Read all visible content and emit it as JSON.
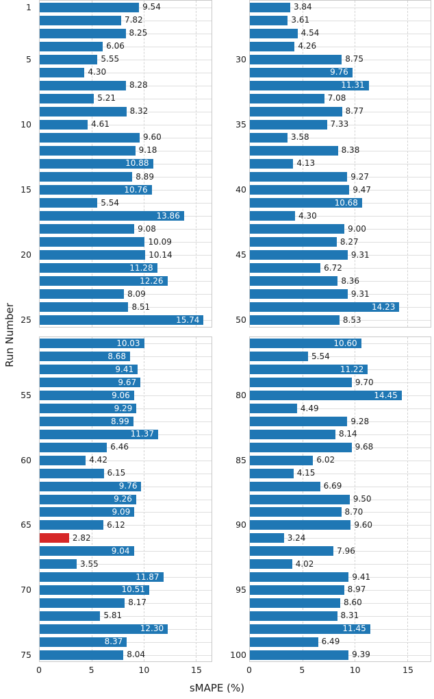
{
  "figure": {
    "xlabel": "sMAPE (%)",
    "ylabel": "Run Number",
    "colors": {
      "bar": "#1f77b4",
      "highlight": "#d62728",
      "label_inside": "#ffffff",
      "label_outside": "#1a1a1a",
      "grid_horizontal": "#dedede",
      "grid_vertical": "#d2d2d2",
      "panel_border": "#c9c9c9",
      "tick_text": "#1a1a1a"
    },
    "highlight_run": 66
  },
  "chart_data": {
    "type": "bar",
    "orientation": "horizontal",
    "title": "",
    "xlabel": "sMAPE (%)",
    "ylabel": "Run Number",
    "x_ticks": [
      0,
      5,
      10,
      15
    ],
    "x_tick_labels": [
      "0",
      "5",
      "10",
      "15"
    ],
    "grid": true,
    "value_labels_decimals": 2,
    "highlight_run": 66,
    "highlight_color": "#d62728",
    "bar_color": "#1f77b4",
    "panels": [
      {
        "name": "runs-1-25",
        "start_run": 1,
        "y_tick_runs": [
          1,
          5,
          10,
          15,
          20,
          25
        ],
        "values": [
          9.54,
          7.82,
          8.25,
          6.06,
          5.55,
          4.3,
          8.28,
          5.21,
          8.32,
          4.61,
          9.6,
          9.18,
          10.88,
          8.89,
          10.76,
          5.54,
          13.86,
          9.08,
          10.09,
          10.14,
          11.28,
          12.26,
          8.09,
          8.51,
          15.74
        ]
      },
      {
        "name": "runs-26-50",
        "start_run": 26,
        "y_tick_runs": [
          30,
          35,
          40,
          45,
          50
        ],
        "values": [
          3.84,
          3.61,
          4.54,
          4.26,
          8.75,
          9.76,
          11.31,
          7.08,
          8.77,
          7.33,
          3.58,
          8.38,
          4.13,
          9.27,
          9.47,
          10.68,
          4.3,
          9.0,
          8.27,
          9.31,
          6.72,
          8.36,
          9.31,
          14.23,
          8.53
        ]
      },
      {
        "name": "runs-51-75",
        "start_run": 51,
        "y_tick_runs": [
          55,
          60,
          65,
          70,
          75
        ],
        "values": [
          10.03,
          8.68,
          9.41,
          9.67,
          9.06,
          9.29,
          8.99,
          11.37,
          6.46,
          4.42,
          6.15,
          9.76,
          9.26,
          9.09,
          6.12,
          2.82,
          9.04,
          3.55,
          11.87,
          10.51,
          8.17,
          5.81,
          12.3,
          8.37,
          8.04
        ]
      },
      {
        "name": "runs-76-100",
        "start_run": 76,
        "y_tick_runs": [
          80,
          85,
          90,
          95,
          100
        ],
        "values": [
          10.6,
          5.54,
          11.22,
          9.7,
          14.45,
          4.49,
          9.28,
          8.14,
          9.68,
          6.02,
          4.15,
          6.69,
          9.5,
          8.7,
          9.6,
          3.24,
          7.96,
          4.02,
          9.41,
          8.97,
          8.6,
          8.31,
          11.45,
          6.49,
          9.39
        ]
      }
    ]
  }
}
